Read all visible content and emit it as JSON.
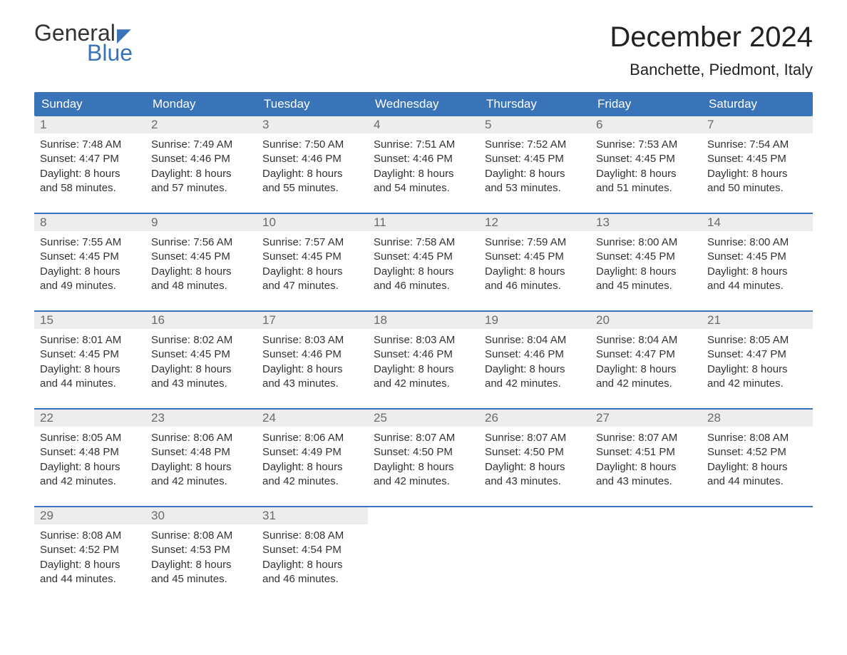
{
  "logo": {
    "word1": "General",
    "word2": "Blue"
  },
  "header": {
    "month_title": "December 2024",
    "location": "Banchette, Piedmont, Italy"
  },
  "dow": [
    "Sunday",
    "Monday",
    "Tuesday",
    "Wednesday",
    "Thursday",
    "Friday",
    "Saturday"
  ],
  "colors": {
    "header_bg": "#3a74b8",
    "header_text": "#ffffff",
    "daynum_bg": "#ededed",
    "daynum_text": "#6b6b6b",
    "body_text": "#333333",
    "rule": "#3a74b8",
    "logo_accent": "#3a74b8"
  },
  "calendar": {
    "type": "calendar-grid",
    "columns": 7,
    "weeks": [
      [
        {
          "n": "1",
          "sunrise": "Sunrise: 7:48 AM",
          "sunset": "Sunset: 4:47 PM",
          "d1": "Daylight: 8 hours",
          "d2": "and 58 minutes."
        },
        {
          "n": "2",
          "sunrise": "Sunrise: 7:49 AM",
          "sunset": "Sunset: 4:46 PM",
          "d1": "Daylight: 8 hours",
          "d2": "and 57 minutes."
        },
        {
          "n": "3",
          "sunrise": "Sunrise: 7:50 AM",
          "sunset": "Sunset: 4:46 PM",
          "d1": "Daylight: 8 hours",
          "d2": "and 55 minutes."
        },
        {
          "n": "4",
          "sunrise": "Sunrise: 7:51 AM",
          "sunset": "Sunset: 4:46 PM",
          "d1": "Daylight: 8 hours",
          "d2": "and 54 minutes."
        },
        {
          "n": "5",
          "sunrise": "Sunrise: 7:52 AM",
          "sunset": "Sunset: 4:45 PM",
          "d1": "Daylight: 8 hours",
          "d2": "and 53 minutes."
        },
        {
          "n": "6",
          "sunrise": "Sunrise: 7:53 AM",
          "sunset": "Sunset: 4:45 PM",
          "d1": "Daylight: 8 hours",
          "d2": "and 51 minutes."
        },
        {
          "n": "7",
          "sunrise": "Sunrise: 7:54 AM",
          "sunset": "Sunset: 4:45 PM",
          "d1": "Daylight: 8 hours",
          "d2": "and 50 minutes."
        }
      ],
      [
        {
          "n": "8",
          "sunrise": "Sunrise: 7:55 AM",
          "sunset": "Sunset: 4:45 PM",
          "d1": "Daylight: 8 hours",
          "d2": "and 49 minutes."
        },
        {
          "n": "9",
          "sunrise": "Sunrise: 7:56 AM",
          "sunset": "Sunset: 4:45 PM",
          "d1": "Daylight: 8 hours",
          "d2": "and 48 minutes."
        },
        {
          "n": "10",
          "sunrise": "Sunrise: 7:57 AM",
          "sunset": "Sunset: 4:45 PM",
          "d1": "Daylight: 8 hours",
          "d2": "and 47 minutes."
        },
        {
          "n": "11",
          "sunrise": "Sunrise: 7:58 AM",
          "sunset": "Sunset: 4:45 PM",
          "d1": "Daylight: 8 hours",
          "d2": "and 46 minutes."
        },
        {
          "n": "12",
          "sunrise": "Sunrise: 7:59 AM",
          "sunset": "Sunset: 4:45 PM",
          "d1": "Daylight: 8 hours",
          "d2": "and 46 minutes."
        },
        {
          "n": "13",
          "sunrise": "Sunrise: 8:00 AM",
          "sunset": "Sunset: 4:45 PM",
          "d1": "Daylight: 8 hours",
          "d2": "and 45 minutes."
        },
        {
          "n": "14",
          "sunrise": "Sunrise: 8:00 AM",
          "sunset": "Sunset: 4:45 PM",
          "d1": "Daylight: 8 hours",
          "d2": "and 44 minutes."
        }
      ],
      [
        {
          "n": "15",
          "sunrise": "Sunrise: 8:01 AM",
          "sunset": "Sunset: 4:45 PM",
          "d1": "Daylight: 8 hours",
          "d2": "and 44 minutes."
        },
        {
          "n": "16",
          "sunrise": "Sunrise: 8:02 AM",
          "sunset": "Sunset: 4:45 PM",
          "d1": "Daylight: 8 hours",
          "d2": "and 43 minutes."
        },
        {
          "n": "17",
          "sunrise": "Sunrise: 8:03 AM",
          "sunset": "Sunset: 4:46 PM",
          "d1": "Daylight: 8 hours",
          "d2": "and 43 minutes."
        },
        {
          "n": "18",
          "sunrise": "Sunrise: 8:03 AM",
          "sunset": "Sunset: 4:46 PM",
          "d1": "Daylight: 8 hours",
          "d2": "and 42 minutes."
        },
        {
          "n": "19",
          "sunrise": "Sunrise: 8:04 AM",
          "sunset": "Sunset: 4:46 PM",
          "d1": "Daylight: 8 hours",
          "d2": "and 42 minutes."
        },
        {
          "n": "20",
          "sunrise": "Sunrise: 8:04 AM",
          "sunset": "Sunset: 4:47 PM",
          "d1": "Daylight: 8 hours",
          "d2": "and 42 minutes."
        },
        {
          "n": "21",
          "sunrise": "Sunrise: 8:05 AM",
          "sunset": "Sunset: 4:47 PM",
          "d1": "Daylight: 8 hours",
          "d2": "and 42 minutes."
        }
      ],
      [
        {
          "n": "22",
          "sunrise": "Sunrise: 8:05 AM",
          "sunset": "Sunset: 4:48 PM",
          "d1": "Daylight: 8 hours",
          "d2": "and 42 minutes."
        },
        {
          "n": "23",
          "sunrise": "Sunrise: 8:06 AM",
          "sunset": "Sunset: 4:48 PM",
          "d1": "Daylight: 8 hours",
          "d2": "and 42 minutes."
        },
        {
          "n": "24",
          "sunrise": "Sunrise: 8:06 AM",
          "sunset": "Sunset: 4:49 PM",
          "d1": "Daylight: 8 hours",
          "d2": "and 42 minutes."
        },
        {
          "n": "25",
          "sunrise": "Sunrise: 8:07 AM",
          "sunset": "Sunset: 4:50 PM",
          "d1": "Daylight: 8 hours",
          "d2": "and 42 minutes."
        },
        {
          "n": "26",
          "sunrise": "Sunrise: 8:07 AM",
          "sunset": "Sunset: 4:50 PM",
          "d1": "Daylight: 8 hours",
          "d2": "and 43 minutes."
        },
        {
          "n": "27",
          "sunrise": "Sunrise: 8:07 AM",
          "sunset": "Sunset: 4:51 PM",
          "d1": "Daylight: 8 hours",
          "d2": "and 43 minutes."
        },
        {
          "n": "28",
          "sunrise": "Sunrise: 8:08 AM",
          "sunset": "Sunset: 4:52 PM",
          "d1": "Daylight: 8 hours",
          "d2": "and 44 minutes."
        }
      ],
      [
        {
          "n": "29",
          "sunrise": "Sunrise: 8:08 AM",
          "sunset": "Sunset: 4:52 PM",
          "d1": "Daylight: 8 hours",
          "d2": "and 44 minutes."
        },
        {
          "n": "30",
          "sunrise": "Sunrise: 8:08 AM",
          "sunset": "Sunset: 4:53 PM",
          "d1": "Daylight: 8 hours",
          "d2": "and 45 minutes."
        },
        {
          "n": "31",
          "sunrise": "Sunrise: 8:08 AM",
          "sunset": "Sunset: 4:54 PM",
          "d1": "Daylight: 8 hours",
          "d2": "and 46 minutes."
        },
        null,
        null,
        null,
        null
      ]
    ]
  }
}
